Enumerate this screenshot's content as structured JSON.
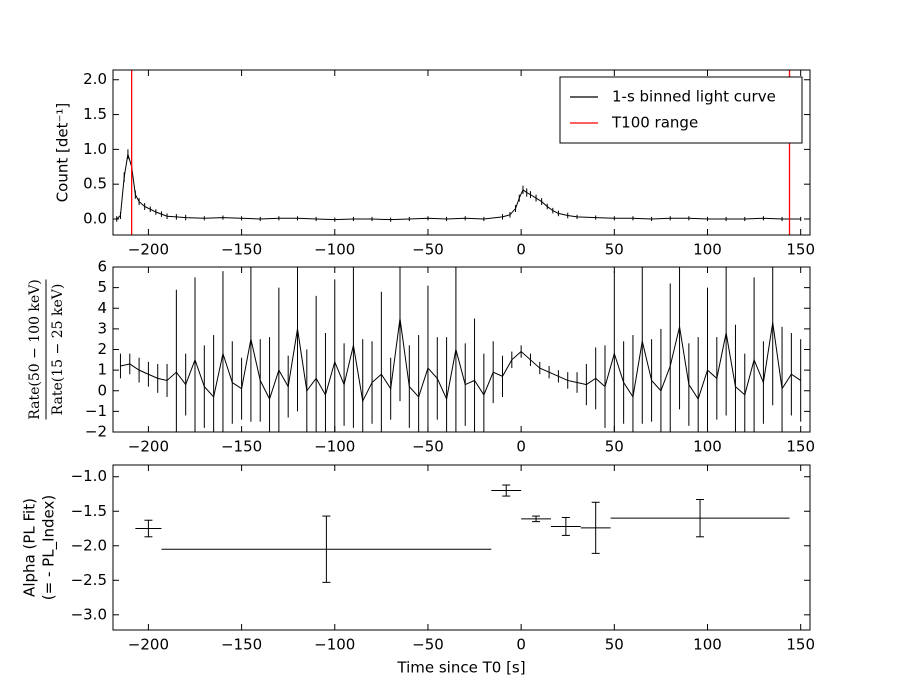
{
  "chart_data": [
    {
      "type": "line",
      "ylabel": "Count [det⁻¹]",
      "xlim": [
        -219,
        155
      ],
      "ylim": [
        -0.23,
        2.14
      ],
      "xticks": [
        {
          "value": -200,
          "label": "−200"
        },
        {
          "value": -150,
          "label": "−150"
        },
        {
          "value": -100,
          "label": "−100"
        },
        {
          "value": -50,
          "label": "−50"
        },
        0,
        50,
        100,
        150
      ],
      "yticks": [
        {
          "value": 0,
          "label": "0.0"
        },
        0.5,
        {
          "value": 1,
          "label": "1.0"
        },
        1.5,
        {
          "value": 2,
          "label": "2.0"
        }
      ],
      "x": [
        -217,
        -215,
        -213,
        -211,
        -209,
        -207,
        -205,
        -202,
        -199,
        -196,
        -193,
        -190,
        -185,
        -180,
        -170,
        -160,
        -150,
        -140,
        -130,
        -120,
        -110,
        -100,
        -90,
        -80,
        -70,
        -60,
        -50,
        -40,
        -30,
        -20,
        -10,
        -6,
        -3,
        -1,
        1,
        3,
        5,
        8,
        11,
        14,
        17,
        20,
        25,
        30,
        40,
        50,
        60,
        70,
        80,
        90,
        100,
        110,
        120,
        130,
        140,
        150
      ],
      "series": [
        {
          "name": "1-s binned light curve",
          "color": "#000000",
          "values": [
            0.0,
            0.05,
            0.6,
            0.93,
            0.75,
            0.35,
            0.25,
            0.18,
            0.14,
            0.1,
            0.07,
            0.04,
            0.03,
            0.02,
            0.01,
            0.02,
            0.01,
            0.0,
            0.01,
            0.01,
            0.0,
            -0.01,
            0.0,
            0.0,
            -0.01,
            0.0,
            0.01,
            0.0,
            0.01,
            0.0,
            0.03,
            0.06,
            0.15,
            0.3,
            0.42,
            0.38,
            0.35,
            0.3,
            0.25,
            0.18,
            0.12,
            0.08,
            0.05,
            0.03,
            0.02,
            0.01,
            0.01,
            0.0,
            0.01,
            0.01,
            0.0,
            0.0,
            0.0,
            0.01,
            0.0,
            0.0
          ],
          "errors": [
            0.04,
            0.05,
            0.07,
            0.07,
            0.07,
            0.06,
            0.05,
            0.05,
            0.04,
            0.04,
            0.04,
            0.04,
            0.04,
            0.04,
            0.03,
            0.03,
            0.03,
            0.03,
            0.03,
            0.03,
            0.03,
            0.03,
            0.03,
            0.03,
            0.03,
            0.03,
            0.03,
            0.03,
            0.03,
            0.03,
            0.04,
            0.04,
            0.05,
            0.05,
            0.06,
            0.06,
            0.05,
            0.05,
            0.05,
            0.04,
            0.04,
            0.04,
            0.04,
            0.03,
            0.03,
            0.03,
            0.03,
            0.03,
            0.03,
            0.03,
            0.03,
            0.03,
            0.03,
            0.03,
            0.03,
            0.03
          ]
        }
      ],
      "vlines": {
        "name": "T100 range",
        "color": "#ff0000",
        "values": [
          -209,
          144
        ]
      },
      "legend": "upper right"
    },
    {
      "type": "line",
      "ylabel_numerator": "Rate(50 − 100 keV)",
      "ylabel_denominator": "Rate(15 − 25 keV)",
      "xlim": [
        -219,
        155
      ],
      "ylim": [
        -2,
        6
      ],
      "xticks": [
        {
          "value": -200,
          "label": "−200"
        },
        {
          "value": -150,
          "label": "−150"
        },
        {
          "value": -100,
          "label": "−100"
        },
        {
          "value": -50,
          "label": "−50"
        },
        0,
        50,
        100,
        150
      ],
      "yticks": [
        {
          "value": -2,
          "label": "−2"
        },
        {
          "value": -1,
          "label": "−1"
        },
        0,
        1,
        2,
        3,
        4,
        5,
        6
      ],
      "x": [
        -215,
        -210,
        -205,
        -200,
        -195,
        -190,
        -185,
        -180,
        -175,
        -170,
        -165,
        -160,
        -155,
        -150,
        -145,
        -140,
        -135,
        -130,
        -125,
        -120,
        -115,
        -110,
        -105,
        -100,
        -95,
        -90,
        -85,
        -80,
        -75,
        -70,
        -65,
        -60,
        -55,
        -50,
        -45,
        -40,
        -35,
        -30,
        -25,
        -20,
        -15,
        -10,
        -5,
        0,
        5,
        10,
        15,
        20,
        25,
        30,
        35,
        40,
        45,
        50,
        55,
        60,
        65,
        70,
        75,
        80,
        85,
        90,
        95,
        100,
        105,
        110,
        115,
        120,
        125,
        130,
        135,
        140,
        145,
        150
      ],
      "series": [
        {
          "color": "#000000",
          "values": [
            1.2,
            1.3,
            1.0,
            0.8,
            0.6,
            0.5,
            0.9,
            0.3,
            1.5,
            0.2,
            -0.3,
            1.8,
            0.4,
            0.1,
            2.5,
            0.5,
            -0.4,
            1.0,
            0.2,
            3.0,
            0.0,
            0.6,
            -0.2,
            1.4,
            0.3,
            2.2,
            -0.5,
            0.4,
            0.8,
            0.1,
            3.5,
            0.2,
            -0.3,
            1.1,
            0.6,
            -0.4,
            2.0,
            0.3,
            0.5,
            -0.2,
            0.9,
            0.7,
            1.5,
            1.9,
            1.5,
            1.1,
            0.9,
            0.7,
            0.5,
            0.4,
            0.3,
            0.6,
            0.2,
            1.8,
            0.4,
            -0.3,
            2.4,
            0.5,
            0.0,
            1.2,
            3.1,
            0.3,
            -0.4,
            1.0,
            0.6,
            2.8,
            0.2,
            -0.2,
            1.5,
            0.4,
            3.3,
            0.1,
            0.8,
            0.5
          ],
          "errors": [
            0.6,
            0.5,
            0.6,
            0.6,
            0.7,
            0.8,
            4,
            1.5,
            4,
            2,
            3,
            4,
            2,
            1.5,
            4,
            2,
            3,
            4,
            1.5,
            4,
            2,
            4,
            3,
            4,
            2,
            4,
            3,
            2,
            4,
            1.5,
            4,
            2,
            3,
            4,
            2,
            3,
            4,
            2,
            3,
            2,
            1.5,
            1,
            0.4,
            0.3,
            0.3,
            0.3,
            0.3,
            0.3,
            0.4,
            0.5,
            1,
            1.5,
            2,
            4,
            2,
            3,
            4,
            2,
            3,
            4,
            4,
            2,
            3,
            4,
            2,
            4,
            3,
            2,
            4,
            2,
            4,
            3,
            2,
            2
          ]
        }
      ]
    },
    {
      "type": "errorbar",
      "ylabel": [
        "Alpha (PL Fit)",
        "(= - PL_Index)"
      ],
      "xlabel": "Time since T0 [s]",
      "xlim": [
        -219,
        155
      ],
      "ylim": [
        -3.22,
        -0.83
      ],
      "xticks": [
        {
          "value": -200,
          "label": "−200"
        },
        {
          "value": -150,
          "label": "−150"
        },
        {
          "value": -100,
          "label": "−100"
        },
        {
          "value": -50,
          "label": "−50"
        },
        0,
        50,
        100,
        150
      ],
      "yticks": [
        {
          "value": -3,
          "label": "−3.0"
        },
        {
          "value": -2.5,
          "label": "−2.5"
        },
        {
          "value": -2,
          "label": "−2.0"
        },
        {
          "value": -1.5,
          "label": "−1.5"
        },
        {
          "value": -1,
          "label": "−1.0"
        }
      ],
      "x": [
        -200,
        -104.5,
        -8,
        8,
        24,
        40,
        96
      ],
      "xerr": [
        7,
        88.5,
        8,
        8,
        8,
        8,
        48
      ],
      "series": [
        {
          "color": "#000000",
          "values": [
            -1.75,
            -2.05,
            -1.2,
            -1.61,
            -1.72,
            -1.74,
            -1.6
          ],
          "errors": [
            0.12,
            0.48,
            0.08,
            0.04,
            0.13,
            0.37,
            0.27
          ]
        }
      ]
    }
  ]
}
